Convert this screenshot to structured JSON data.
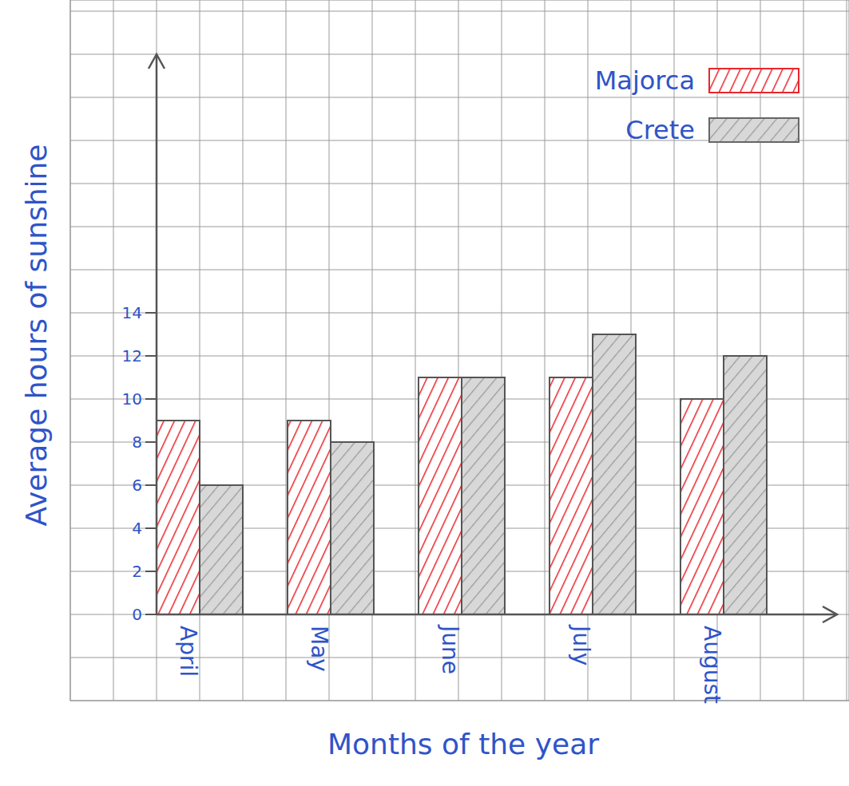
{
  "chart_data": {
    "type": "bar",
    "x_label": "Months of the year",
    "y_label": "Average hours of sunshine",
    "categories": [
      "April",
      "May",
      "June",
      "July",
      "August"
    ],
    "series": [
      {
        "name": "Majorca",
        "color": "#e8262b",
        "values": [
          9,
          9,
          11,
          11,
          10
        ]
      },
      {
        "name": "Crete",
        "color": "#9a9a9a",
        "values": [
          6,
          8,
          11,
          13,
          12
        ]
      }
    ],
    "ylim": [
      0,
      26
    ],
    "yticks": [
      0,
      2,
      4,
      6,
      8,
      10,
      12,
      14
    ],
    "legend": "top-right"
  }
}
